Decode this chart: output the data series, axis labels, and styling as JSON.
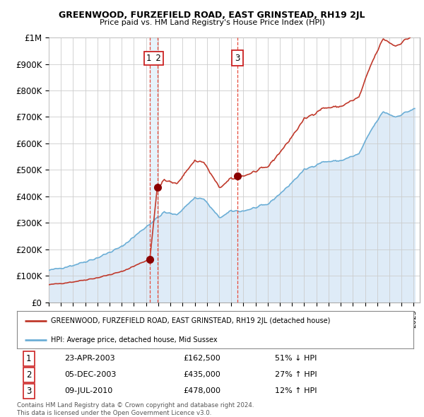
{
  "title": "GREENWOOD, FURZEFIELD ROAD, EAST GRINSTEAD, RH19 2JL",
  "subtitle": "Price paid vs. HM Land Registry's House Price Index (HPI)",
  "ylim": [
    0,
    1000000
  ],
  "yticks": [
    0,
    100000,
    200000,
    300000,
    400000,
    500000,
    600000,
    700000,
    800000,
    900000,
    1000000
  ],
  "ytick_labels": [
    "£0",
    "£100K",
    "£200K",
    "£300K",
    "£400K",
    "£500K",
    "£600K",
    "£700K",
    "£800K",
    "£900K",
    "£1M"
  ],
  "xlim_start": 1995.0,
  "xlim_end": 2025.5,
  "hpi_color": "#6baed6",
  "hpi_fill_color": "#deebf7",
  "price_color": "#c0392b",
  "sale_line_color": "#e74c3c",
  "background_color": "#ffffff",
  "grid_color": "#cccccc",
  "sale1_year": 2003.31,
  "sale2_year": 2003.92,
  "sale3_year": 2010.52,
  "sale1_price": 162500,
  "sale2_price": 435000,
  "sale3_price": 478000,
  "sales": [
    {
      "num": "1",
      "label": "23-APR-2003",
      "amount": "£162,500",
      "pct": "51% ↓ HPI"
    },
    {
      "num": "2",
      "label": "05-DEC-2003",
      "amount": "£435,000",
      "pct": "27% ↑ HPI"
    },
    {
      "num": "3",
      "label": "09-JUL-2010",
      "amount": "£478,000",
      "pct": "12% ↑ HPI"
    }
  ],
  "legend_property": "GREENWOOD, FURZEFIELD ROAD, EAST GRINSTEAD, RH19 2JL (detached house)",
  "legend_hpi": "HPI: Average price, detached house, Mid Sussex",
  "footer": "Contains HM Land Registry data © Crown copyright and database right 2024.\nThis data is licensed under the Open Government Licence v3.0."
}
